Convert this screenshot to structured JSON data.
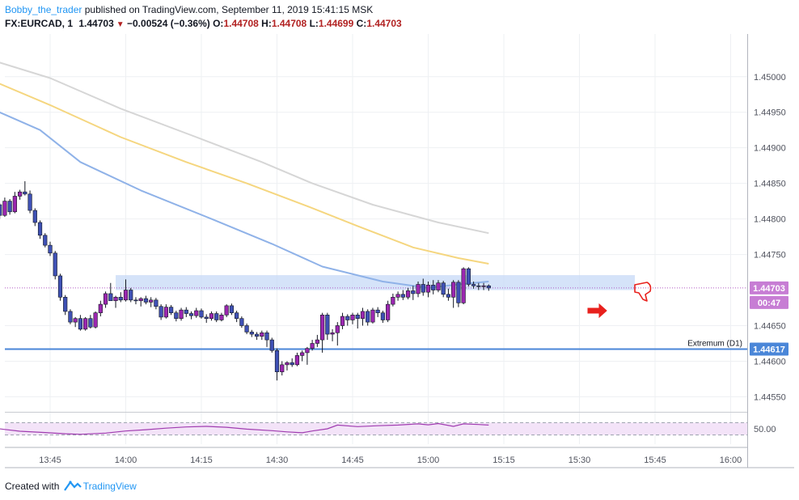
{
  "header": {
    "author": "Bobby_the_trader",
    "published": "published on TradingView.com, September 11, 2019 15:41:15 MSK",
    "symbol": "FX:EURCAD, 1",
    "last": "1.44703",
    "change": "−0.00524 (−0.36%)",
    "o_label": "O:",
    "o": "1.44708",
    "h_label": "H:",
    "h": "1.44708",
    "l_label": "L:",
    "l": "1.44699",
    "c_label": "C:",
    "c": "1.44703"
  },
  "footer": {
    "created_with": "Created with",
    "brand": "TradingView"
  },
  "colors": {
    "up": "#9c27b0",
    "down": "#3f51b5",
    "wick": "#131722",
    "sma_gray": "#d6d6d6",
    "sma_yellow": "#f5d67f",
    "sma_blue": "#8fb2e8",
    "support_line": "#4a86d8",
    "zone": "#c7d9f7",
    "price_badge": "#c77dd4",
    "rsi_line": "#a03cb0",
    "rsi_band": "#f3e3f8",
    "arrow": "#e8211d"
  },
  "chart_data": {
    "type": "candlestick",
    "x_ticks": [
      "13:45",
      "14:00",
      "14:15",
      "14:30",
      "14:45",
      "15:00",
      "15:15",
      "15:30",
      "15:45",
      "16:00"
    ],
    "y_ticks": [
      "1.45000",
      "1.44950",
      "1.44900",
      "1.44850",
      "1.44800",
      "1.44750",
      "1.44650",
      "1.44600",
      "1.44550"
    ],
    "y_range": [
      1.4453,
      1.4506
    ],
    "current_price": "1.44703",
    "countdown": "00:47",
    "support_price": "1.44617",
    "support_label": "Extremum (D1)",
    "zone": {
      "from_time": "13:58",
      "to_time": "15:41",
      "low": 1.447,
      "high": 1.44721
    },
    "rsi": {
      "level_label": "50.00",
      "upper": 70,
      "lower": 30,
      "mid": 50
    },
    "candles_start": "13:34",
    "candles": [
      [
        1.44819,
        1.44822,
        1.4481,
        1.4482
      ],
      [
        1.4482,
        1.44822,
        1.448,
        1.44805
      ],
      [
        1.44805,
        1.4483,
        1.44803,
        1.44825
      ],
      [
        1.44825,
        1.44828,
        1.44806,
        1.4481
      ],
      [
        1.4481,
        1.44838,
        1.44808,
        1.44832
      ],
      [
        1.44832,
        1.44841,
        1.44827,
        1.44838
      ],
      [
        1.44838,
        1.44853,
        1.44833,
        1.44835
      ],
      [
        1.44835,
        1.4484,
        1.44808,
        1.44812
      ],
      [
        1.44812,
        1.44815,
        1.4479,
        1.44795
      ],
      [
        1.44795,
        1.44798,
        1.44772,
        1.44777
      ],
      [
        1.44777,
        1.4478,
        1.4476,
        1.44763
      ],
      [
        1.44763,
        1.44768,
        1.44748,
        1.44752
      ],
      [
        1.44752,
        1.44755,
        1.44715,
        1.4472
      ],
      [
        1.4472,
        1.44723,
        1.44685,
        1.4469
      ],
      [
        1.4469,
        1.44693,
        1.44665,
        1.4467
      ],
      [
        1.4467,
        1.44673,
        1.44652,
        1.44655
      ],
      [
        1.44655,
        1.44662,
        1.44648,
        1.4466
      ],
      [
        1.4466,
        1.44665,
        1.44643,
        1.44645
      ],
      [
        1.44645,
        1.44662,
        1.44643,
        1.4466
      ],
      [
        1.4466,
        1.44665,
        1.44646,
        1.44648
      ],
      [
        1.44648,
        1.4467,
        1.44646,
        1.44668
      ],
      [
        1.44668,
        1.44685,
        1.44663,
        1.4468
      ],
      [
        1.4468,
        1.44698,
        1.44675,
        1.44695
      ],
      [
        1.44695,
        1.4471,
        1.4469,
        1.44685
      ],
      [
        1.44685,
        1.44692,
        1.44675,
        1.4469
      ],
      [
        1.4469,
        1.44697,
        1.44683,
        1.44686
      ],
      [
        1.44686,
        1.44715,
        1.44684,
        1.447
      ],
      [
        1.447,
        1.44703,
        1.44683,
        1.44686
      ],
      [
        1.44686,
        1.4469,
        1.4468,
        1.44685
      ],
      [
        1.44685,
        1.4469,
        1.44677,
        1.44688
      ],
      [
        1.44688,
        1.44692,
        1.4468,
        1.44683
      ],
      [
        1.44683,
        1.4469,
        1.44676,
        1.44686
      ],
      [
        1.44686,
        1.44689,
        1.44673,
        1.44677
      ],
      [
        1.44677,
        1.4468,
        1.44658,
        1.44662
      ],
      [
        1.44662,
        1.4468,
        1.4466,
        1.44676
      ],
      [
        1.44676,
        1.44679,
        1.44665,
        1.44668
      ],
      [
        1.44668,
        1.44671,
        1.44656,
        1.4466
      ],
      [
        1.4466,
        1.44675,
        1.44657,
        1.44672
      ],
      [
        1.44672,
        1.44676,
        1.44662,
        1.44667
      ],
      [
        1.44667,
        1.4467,
        1.44659,
        1.44664
      ],
      [
        1.44664,
        1.44675,
        1.44661,
        1.44671
      ],
      [
        1.44671,
        1.44674,
        1.4466,
        1.44662
      ],
      [
        1.44662,
        1.44666,
        1.44654,
        1.4466
      ],
      [
        1.4466,
        1.4467,
        1.44657,
        1.44667
      ],
      [
        1.44667,
        1.4467,
        1.44655,
        1.44658
      ],
      [
        1.44658,
        1.44668,
        1.44656,
        1.44665
      ],
      [
        1.44665,
        1.4468,
        1.44662,
        1.44678
      ],
      [
        1.44678,
        1.44681,
        1.44665,
        1.44668
      ],
      [
        1.44668,
        1.44671,
        1.44655,
        1.4466
      ],
      [
        1.4466,
        1.44663,
        1.44647,
        1.4465
      ],
      [
        1.4465,
        1.44653,
        1.44638,
        1.44641
      ],
      [
        1.44641,
        1.44644,
        1.44634,
        1.44638
      ],
      [
        1.44638,
        1.44641,
        1.4463,
        1.44635
      ],
      [
        1.44635,
        1.44643,
        1.4463,
        1.4464
      ],
      [
        1.4464,
        1.44643,
        1.4462,
        1.4463
      ],
      [
        1.4463,
        1.44633,
        1.44612,
        1.44615
      ],
      [
        1.44615,
        1.44618,
        1.44573,
        1.44585
      ],
      [
        1.44585,
        1.446,
        1.4458,
        1.44595
      ],
      [
        1.44595,
        1.446,
        1.44587,
        1.44598
      ],
      [
        1.44598,
        1.44604,
        1.44592,
        1.44595
      ],
      [
        1.44595,
        1.44612,
        1.44593,
        1.44608
      ],
      [
        1.44608,
        1.44615,
        1.446,
        1.44612
      ],
      [
        1.44612,
        1.4462,
        1.44595,
        1.44618
      ],
      [
        1.44618,
        1.4463,
        1.44615,
        1.44625
      ],
      [
        1.44625,
        1.44637,
        1.4462,
        1.4463
      ],
      [
        1.4463,
        1.44668,
        1.44612,
        1.44665
      ],
      [
        1.44665,
        1.44668,
        1.4463,
        1.44638
      ],
      [
        1.44638,
        1.44645,
        1.44628,
        1.4464
      ],
      [
        1.4464,
        1.44655,
        1.44622,
        1.4465
      ],
      [
        1.4465,
        1.44668,
        1.44645,
        1.44663
      ],
      [
        1.44663,
        1.44666,
        1.4465,
        1.44658
      ],
      [
        1.44658,
        1.44668,
        1.44652,
        1.44665
      ],
      [
        1.44665,
        1.44668,
        1.44646,
        1.4466
      ],
      [
        1.4466,
        1.44675,
        1.4465,
        1.4467
      ],
      [
        1.4467,
        1.44673,
        1.4465,
        1.44655
      ],
      [
        1.44655,
        1.44675,
        1.44653,
        1.44672
      ],
      [
        1.44672,
        1.44676,
        1.44662,
        1.44668
      ],
      [
        1.44668,
        1.44671,
        1.44654,
        1.44658
      ],
      [
        1.44658,
        1.44685,
        1.44655,
        1.4468
      ],
      [
        1.4468,
        1.44695,
        1.44677,
        1.4469
      ],
      [
        1.4469,
        1.44698,
        1.44685,
        1.44694
      ],
      [
        1.44694,
        1.447,
        1.44686,
        1.4469
      ],
      [
        1.4469,
        1.44703,
        1.44687,
        1.44699
      ],
      [
        1.44699,
        1.44706,
        1.44686,
        1.44695
      ],
      [
        1.44695,
        1.44712,
        1.4469,
        1.44708
      ],
      [
        1.44708,
        1.44716,
        1.44692,
        1.44697
      ],
      [
        1.44697,
        1.44712,
        1.4469,
        1.44707
      ],
      [
        1.44707,
        1.44714,
        1.44694,
        1.447
      ],
      [
        1.447,
        1.44714,
        1.44697,
        1.4471
      ],
      [
        1.4471,
        1.44713,
        1.4469,
        1.44694
      ],
      [
        1.44694,
        1.44702,
        1.44685,
        1.4469
      ],
      [
        1.4469,
        1.44714,
        1.44675,
        1.44711
      ],
      [
        1.44711,
        1.44714,
        1.44676,
        1.44682
      ],
      [
        1.44682,
        1.44732,
        1.4468,
        1.4473
      ],
      [
        1.4473,
        1.44732,
        1.44705,
        1.44708
      ],
      [
        1.44708,
        1.44712,
        1.44702,
        1.44706
      ],
      [
        1.44706,
        1.4471,
        1.447,
        1.44705
      ],
      [
        1.44705,
        1.4471,
        1.447,
        1.44706
      ],
      [
        1.44706,
        1.44708,
        1.44699,
        1.44703
      ]
    ],
    "sma_gray": [
      [
        1.45022,
        0
      ],
      [
        1.44998,
        11
      ],
      [
        1.44955,
        25
      ],
      [
        1.44915,
        40
      ],
      [
        1.4488,
        53
      ],
      [
        1.4485,
        63
      ],
      [
        1.4482,
        75
      ],
      [
        1.44795,
        88
      ],
      [
        1.4478,
        98
      ]
    ],
    "sma_yellow": [
      [
        1.44993,
        0
      ],
      [
        1.4496,
        11
      ],
      [
        1.44915,
        25
      ],
      [
        1.4488,
        38
      ],
      [
        1.4485,
        50
      ],
      [
        1.44818,
        62
      ],
      [
        1.4479,
        72
      ],
      [
        1.4476,
        83
      ],
      [
        1.44745,
        92
      ],
      [
        1.44737,
        98
      ]
    ],
    "sma_blue": [
      [
        1.44953,
        0
      ],
      [
        1.44925,
        9
      ],
      [
        1.4488,
        17
      ],
      [
        1.4484,
        29
      ],
      [
        1.448,
        43
      ],
      [
        1.44765,
        55
      ],
      [
        1.44733,
        65
      ],
      [
        1.44712,
        77
      ],
      [
        1.44703,
        86
      ],
      [
        1.44708,
        92
      ],
      [
        1.44712,
        98
      ]
    ],
    "rsi_values": [
      [
        52,
        0
      ],
      [
        48,
        2
      ],
      [
        42,
        5
      ],
      [
        38,
        10
      ],
      [
        34,
        14
      ],
      [
        32,
        17
      ],
      [
        36,
        22
      ],
      [
        43,
        26
      ],
      [
        47,
        30
      ],
      [
        52,
        34
      ],
      [
        56,
        38
      ],
      [
        58,
        42
      ],
      [
        55,
        46
      ],
      [
        49,
        50
      ],
      [
        44,
        55
      ],
      [
        40,
        58
      ],
      [
        37,
        61
      ],
      [
        43,
        63
      ],
      [
        50,
        66
      ],
      [
        62,
        68
      ],
      [
        57,
        72
      ],
      [
        60,
        76
      ],
      [
        62,
        80
      ],
      [
        66,
        84
      ],
      [
        63,
        86
      ],
      [
        67,
        88
      ],
      [
        58,
        91
      ],
      [
        66,
        93
      ],
      [
        64,
        96
      ],
      [
        62,
        98
      ]
    ]
  }
}
